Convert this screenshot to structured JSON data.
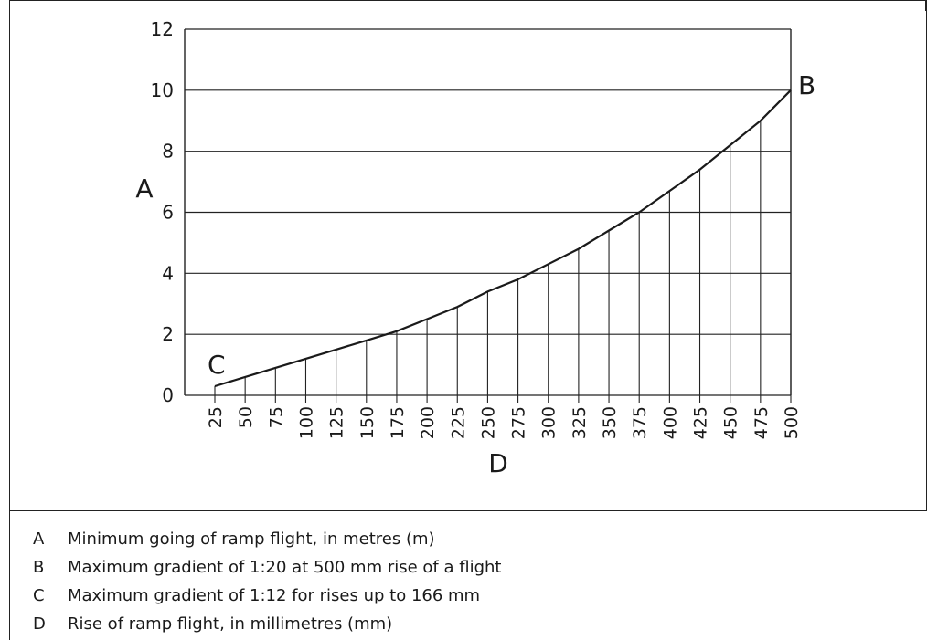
{
  "chart_data": {
    "type": "line",
    "x_categories": [
      "25",
      "50",
      "75",
      "100",
      "125",
      "150",
      "175",
      "200",
      "225",
      "250",
      "275",
      "300",
      "325",
      "350",
      "375",
      "400",
      "425",
      "450",
      "475",
      "500"
    ],
    "y": [
      0.3,
      0.6,
      0.9,
      1.2,
      1.5,
      1.8,
      2.1,
      2.5,
      2.9,
      3.4,
      3.8,
      4.3,
      4.8,
      5.4,
      6.0,
      6.7,
      7.4,
      8.2,
      9.0,
      10.0
    ],
    "y_ticks": [
      "0",
      "2",
      "4",
      "6",
      "8",
      "10",
      "12"
    ],
    "ylim": [
      0,
      12
    ],
    "ylabel": "A",
    "xlabel": "D",
    "grid": "horizontal lines at y ticks; vertical drop lines from curve to x axis",
    "annotations": [
      {
        "label": "B",
        "at_category": "500",
        "value": 10.0
      },
      {
        "label": "C",
        "at_category": "25",
        "value": 0.3
      }
    ]
  },
  "legend": [
    {
      "key": "A",
      "text": "Minimum going of ramp flight, in metres (m)"
    },
    {
      "key": "B",
      "text": "Maximum gradient of 1:20 at 500 mm rise of a flight"
    },
    {
      "key": "C",
      "text": "Maximum gradient of 1:12 for rises up to 166 mm"
    },
    {
      "key": "D",
      "text": "Rise of ramp flight, in millimetres (mm)"
    }
  ]
}
